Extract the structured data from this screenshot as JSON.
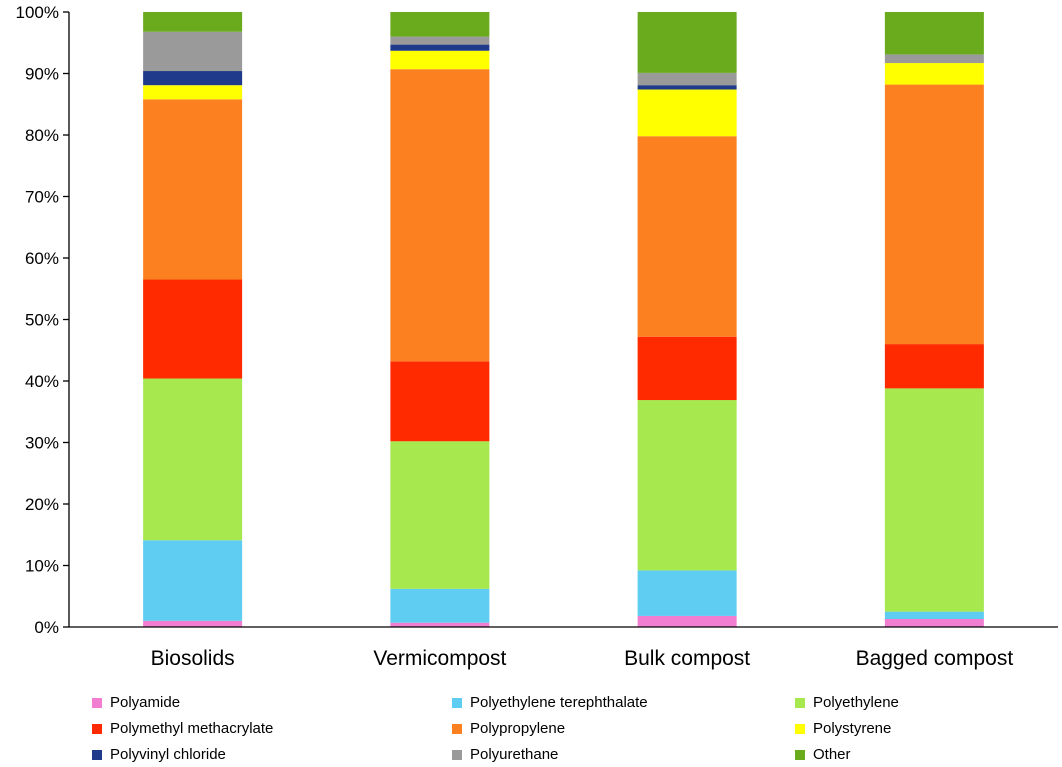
{
  "chart_data": {
    "type": "bar",
    "stacked": true,
    "percent_stacked": true,
    "title": "",
    "xlabel": "",
    "ylabel": "",
    "ylim": [
      0,
      100
    ],
    "y_ticks": [
      "0%",
      "10%",
      "20%",
      "30%",
      "40%",
      "50%",
      "60%",
      "70%",
      "80%",
      "90%",
      "100%"
    ],
    "grid": false,
    "legend_position": "bottom",
    "categories": [
      "Biosolids",
      "Vermicompost",
      "Bulk compost",
      "Bagged compost"
    ],
    "series": [
      {
        "name": "Polyamide",
        "color": "#f17ed0",
        "values": [
          1.0,
          0.7,
          1.8,
          1.3
        ]
      },
      {
        "name": "Polyethylene terephthalate",
        "color": "#5fcdf2",
        "values": [
          13.1,
          5.5,
          7.4,
          1.2
        ]
      },
      {
        "name": "Polyethylene",
        "color": "#a6e84e",
        "values": [
          26.3,
          24.0,
          27.7,
          36.3
        ]
      },
      {
        "name": "Polymethyl methacrylate",
        "color": "#ff2a00",
        "values": [
          16.1,
          13.0,
          10.3,
          7.2
        ]
      },
      {
        "name": "Polypropylene",
        "color": "#fc8020",
        "values": [
          29.3,
          47.5,
          32.6,
          42.2
        ]
      },
      {
        "name": "Polystyrene",
        "color": "#ffff00",
        "values": [
          2.3,
          3.0,
          7.6,
          3.5
        ]
      },
      {
        "name": "Polyvinyl chloride",
        "color": "#1f3a8a",
        "values": [
          2.3,
          1.0,
          0.7,
          0.0
        ]
      },
      {
        "name": "Polyurethane",
        "color": "#9a9a9a",
        "values": [
          6.4,
          1.3,
          2.0,
          1.4
        ]
      },
      {
        "name": "Other",
        "color": "#6aab1d",
        "values": [
          3.2,
          4.0,
          9.9,
          6.9
        ]
      }
    ]
  }
}
